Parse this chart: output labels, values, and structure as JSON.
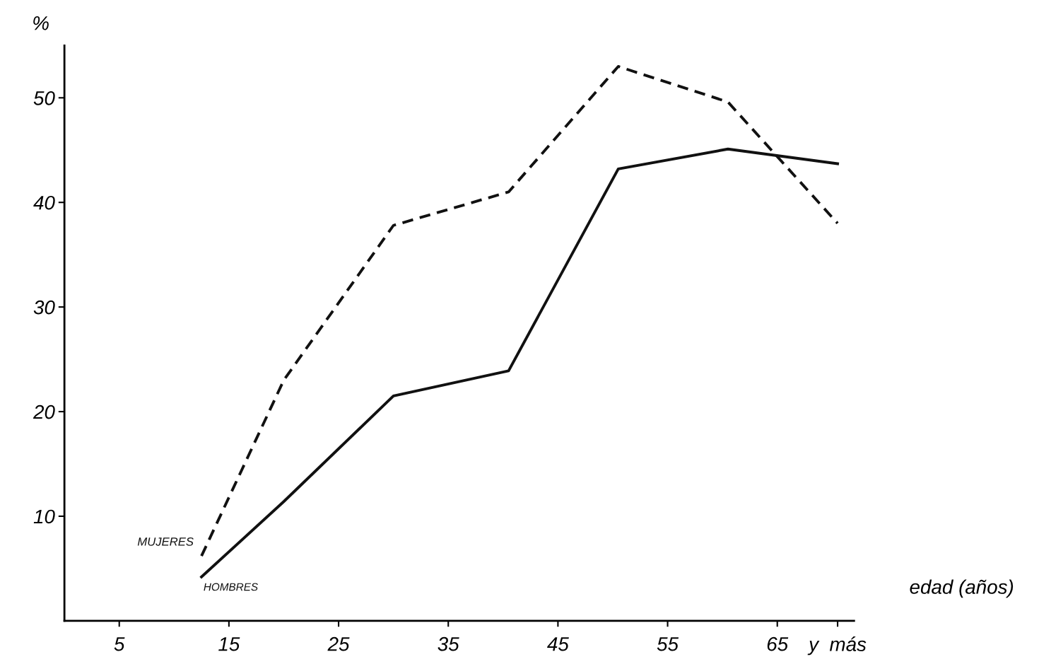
{
  "chart_data": {
    "type": "line",
    "ylabel": "%",
    "xlabel": "edad (años)",
    "x": [
      12.5,
      20,
      30,
      40.5,
      50.5,
      60.5,
      70.5
    ],
    "series": [
      {
        "name": "MUJERES",
        "color": "#111111",
        "line_style": "dashed",
        "values": [
          6.2,
          23,
          37.8,
          41,
          53,
          49.6,
          38
        ]
      },
      {
        "name": "HOMBRES",
        "color": "#111111",
        "line_style": "solid",
        "values": [
          4.2,
          11.4,
          21.5,
          23.9,
          43.2,
          45.1,
          43.7
        ]
      }
    ],
    "xlim": [
      0,
      72
    ],
    "xticks": [
      5,
      15,
      25,
      35,
      45,
      55,
      65,
      {
        "value": 70.5,
        "label": "y  más"
      }
    ],
    "ylim": [
      0,
      55
    ],
    "yticks": [
      10,
      20,
      30,
      40,
      50
    ],
    "grid": false,
    "legend": false,
    "marker": "none"
  }
}
